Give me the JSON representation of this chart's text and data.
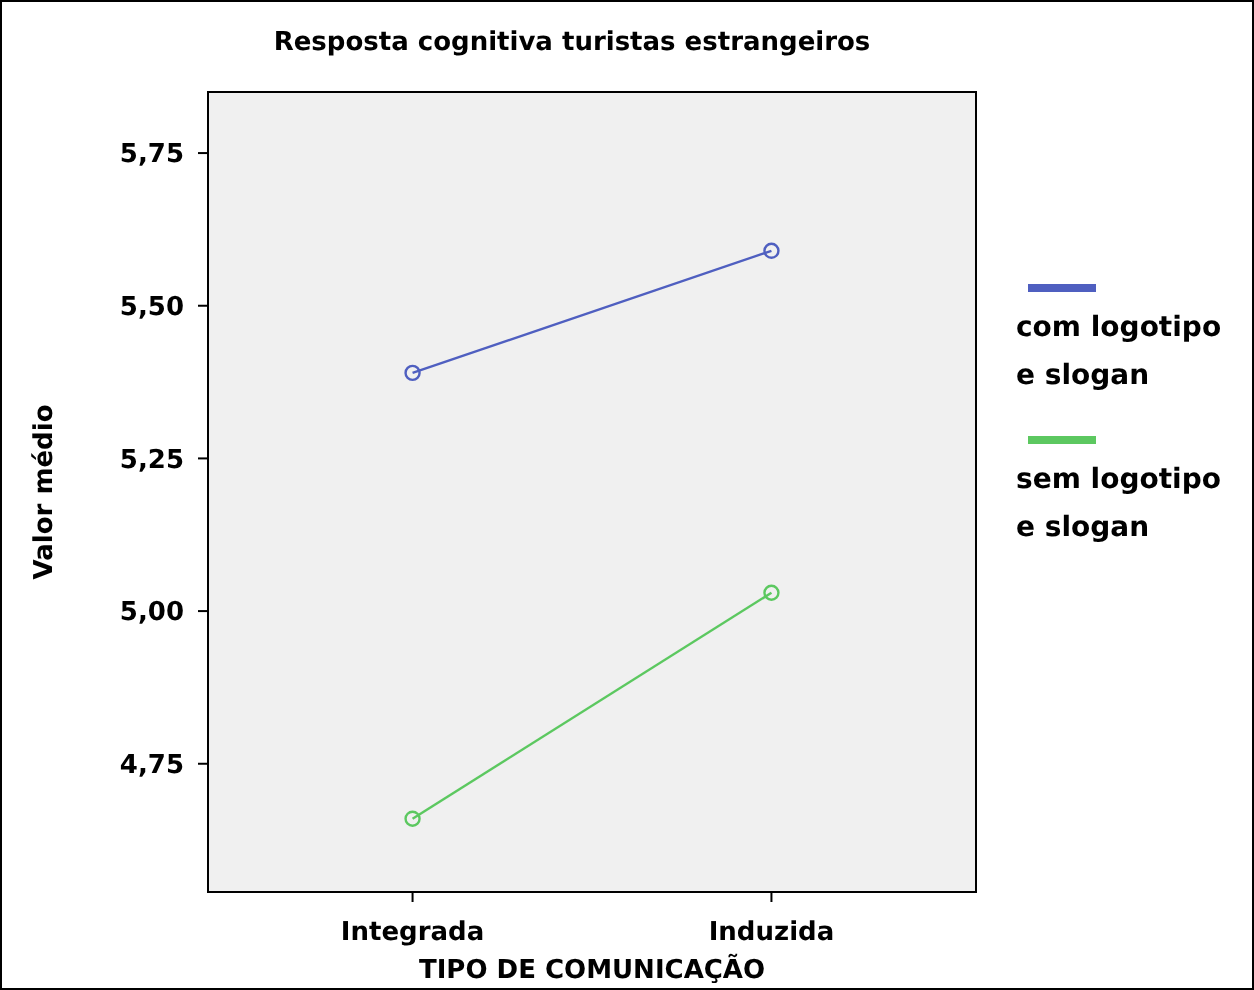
{
  "chart_data": {
    "type": "line",
    "title": "Resposta cognitiva turistas estrangeiros",
    "xlabel": "TIPO DE COMUNICAÇÃO",
    "ylabel": "Valor médio",
    "categories": [
      "Integrada",
      "Induzida"
    ],
    "series": [
      {
        "name": "com logotipo e slogan",
        "color": "#4f5fc0",
        "values": [
          5.39,
          5.59
        ]
      },
      {
        "name": "sem logotipo e slogan",
        "color": "#5cc860",
        "values": [
          4.66,
          5.03
        ]
      }
    ],
    "ylim": [
      4.54,
      5.85
    ],
    "yticks": [
      {
        "value": 4.75,
        "label": "4,75"
      },
      {
        "value": 5,
        "label": "5,00"
      },
      {
        "value": 5.25,
        "label": "5,25"
      },
      {
        "value": 5.5,
        "label": "5,50"
      },
      {
        "value": 5.75,
        "label": "5,75"
      }
    ],
    "grid": false,
    "legend": "right",
    "marker": "circle",
    "line_style": "solid"
  }
}
